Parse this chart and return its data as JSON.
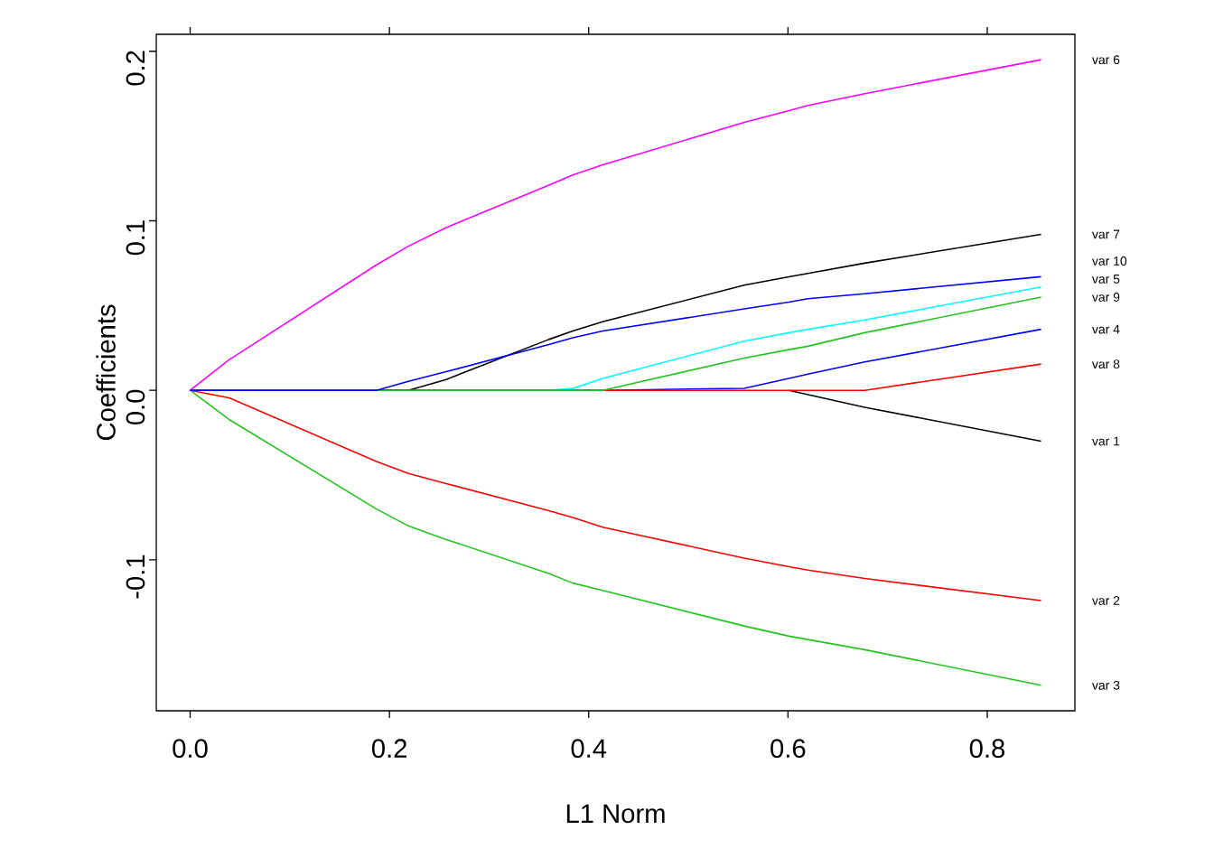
{
  "chart_data": {
    "type": "line",
    "xlabel": "L1 Norm",
    "ylabel": "Coefficients",
    "x": [
      0,
      0.039,
      0.187,
      0.219,
      0.257,
      0.36,
      0.384,
      0.414,
      0.556,
      0.601,
      0.62,
      0.677,
      0.854
    ],
    "xlim": [
      -0.034,
      0.888
    ],
    "ylim": [
      -0.189,
      0.21
    ],
    "xticks": [
      {
        "value": 0,
        "label": "0.0"
      },
      0.2,
      0.4,
      0.6,
      0.8
    ],
    "yticks": [
      -0.1,
      {
        "value": 0,
        "label": "0.0"
      },
      0.1,
      0.2
    ],
    "grid": false,
    "legend": false,
    "line_style": "solid",
    "marker": "none",
    "series": [
      {
        "name": "var 1",
        "color": "#000000",
        "values": [
          null,
          null,
          null,
          null,
          null,
          null,
          null,
          null,
          null,
          0,
          -0.0025,
          -0.01,
          -0.03
        ]
      },
      {
        "name": "var 2",
        "color": "#ff0000",
        "values": [
          0,
          -0.0044,
          -0.042,
          -0.049,
          -0.055,
          -0.071,
          -0.075,
          -0.0807,
          -0.099,
          -0.104,
          -0.106,
          -0.111,
          -0.124
        ]
      },
      {
        "name": "var 3",
        "color": "#22c41e",
        "values": [
          0,
          -0.0172,
          -0.07,
          -0.08,
          -0.088,
          -0.108,
          -0.1137,
          -0.118,
          -0.139,
          -0.145,
          -0.147,
          -0.153,
          -0.174
        ]
      },
      {
        "name": "var 4",
        "color": "#0000ff",
        "values": [
          0,
          0,
          0,
          0,
          0,
          0,
          0,
          0,
          0.0012,
          0.007,
          0.0096,
          0.0167,
          0.036
        ]
      },
      {
        "name": "var 5",
        "color": "#00ffff",
        "values": [
          null,
          null,
          null,
          null,
          0,
          0,
          0.0011,
          0.007,
          0.029,
          0.034,
          0.036,
          0.0415,
          0.061
        ]
      },
      {
        "name": "var 6",
        "color": "#ff00ff",
        "values": [
          0,
          0.018,
          0.074,
          0.085,
          0.096,
          0.121,
          0.127,
          0.133,
          0.158,
          0.165,
          0.168,
          0.175,
          0.195
        ]
      },
      {
        "name": "var 7",
        "color": "#000000",
        "values": [
          0,
          0,
          0,
          0,
          0.0064,
          0.03,
          0.035,
          0.0405,
          0.062,
          0.067,
          0.069,
          0.075,
          0.092
        ]
      },
      {
        "name": "var 8",
        "color": "#ff0000",
        "values": [
          0,
          0,
          0,
          0,
          0,
          0,
          0,
          0,
          0,
          0,
          0,
          0,
          0.0155
        ]
      },
      {
        "name": "var 9",
        "color": "#22c41e",
        "values": [
          0,
          0,
          0,
          0,
          0,
          0,
          0,
          0,
          0.019,
          0.024,
          0.026,
          0.034,
          0.055
        ]
      },
      {
        "name": "var 10",
        "color": "#0000ff",
        "values": [
          0,
          0,
          0,
          0.0053,
          0.011,
          0.027,
          0.031,
          0.035,
          0.048,
          0.052,
          0.054,
          0.057,
          0.067
        ]
      }
    ]
  }
}
